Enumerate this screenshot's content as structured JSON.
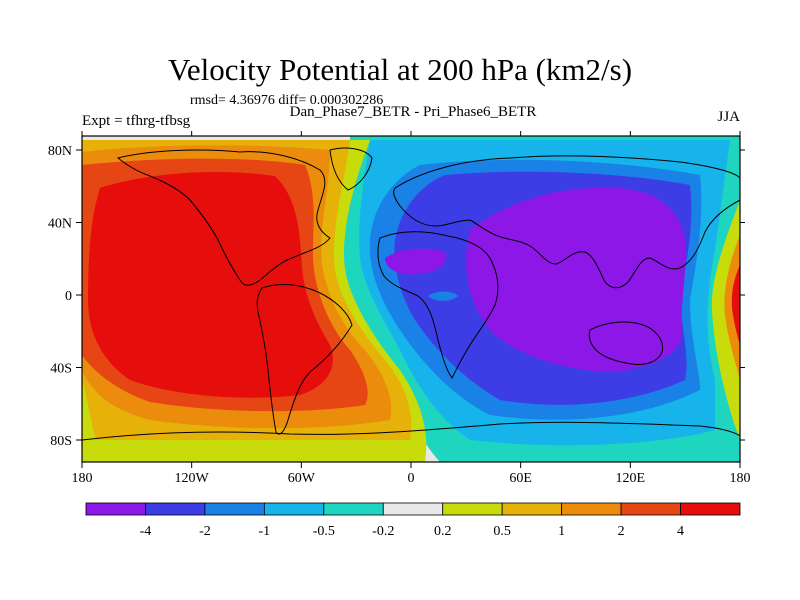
{
  "chart_data": {
    "type": "contour-map",
    "title": "Velocity Potential at 200 hPa (km2/s)",
    "stats": "rmsd= 4.36976 diff= 0.000302286",
    "experiment": "Expt = tfhrg-tfbsg",
    "difference_label": "Dan_Phase7_BETR - Pri_Phase6_BETR",
    "season": "JJA",
    "x_ticks": [
      "180",
      "120W",
      "60W",
      "0",
      "60E",
      "120E",
      "180"
    ],
    "y_ticks": [
      "80N",
      "40N",
      "0",
      "40S",
      "80S"
    ],
    "xlim": [
      -180,
      180
    ],
    "ylim": [
      -90,
      90
    ],
    "colorbar_levels": [
      "-4",
      "-2",
      "-1",
      "-0.5",
      "-0.2",
      "0.2",
      "0.5",
      "1",
      "2",
      "4"
    ],
    "colorbar_colors": [
      "#8c17e6",
      "#3d3de6",
      "#1a82e6",
      "#16b4ea",
      "#1ed6c0",
      "#e8e8e8",
      "#c8dc0c",
      "#e6b20a",
      "#ec8c0c",
      "#e64614",
      "#e60d0d"
    ]
  }
}
